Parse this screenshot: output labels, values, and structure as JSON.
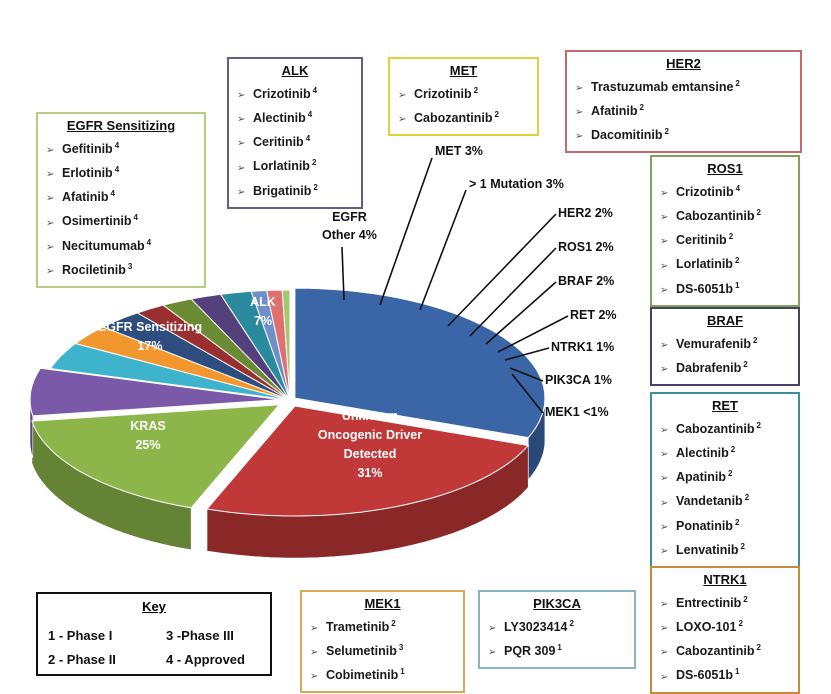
{
  "chart_data": {
    "type": "pie",
    "title": "",
    "slices": [
      {
        "label": "Unknown Oncogenic Driver Detected",
        "lines": [
          "Unknown",
          "Oncogenic Driver",
          "Detected",
          "31%"
        ],
        "value": 31,
        "value_label": "31%",
        "color": "#3a66a8"
      },
      {
        "label": "KRAS",
        "lines": [
          "KRAS",
          "25%"
        ],
        "value": 25,
        "value_label": "25%",
        "color": "#c03838"
      },
      {
        "label": "EGFR Sensitizing",
        "lines": [
          "EGFR Sensitizing",
          "17%"
        ],
        "value": 17,
        "value_label": "17%",
        "color": "#8cb64a"
      },
      {
        "label": "ALK",
        "lines": [
          "ALK",
          "7%"
        ],
        "value": 7,
        "value_label": "7%",
        "color": "#7a5aa8"
      },
      {
        "label": "EGFR Other",
        "value": 4,
        "value_label": "4%",
        "color": "#3eb3cc"
      },
      {
        "label": "MET",
        "value": 3,
        "value_label": "3%",
        "color": "#f2962e"
      },
      {
        "label": "> 1 Mutation",
        "value": 3,
        "value_label": "3%",
        "color": "#2c4d7e"
      },
      {
        "label": "HER2",
        "value": 2,
        "value_label": "2%",
        "color": "#9a2f2f"
      },
      {
        "label": "ROS1",
        "value": 2,
        "value_label": "2%",
        "color": "#6a8a34"
      },
      {
        "label": "BRAF",
        "value": 2,
        "value_label": "2%",
        "color": "#54407a"
      },
      {
        "label": "RET",
        "value": 2,
        "value_label": "2%",
        "color": "#2b8a9e"
      },
      {
        "label": "NTRK1",
        "value": 1,
        "value_label": "1%",
        "color": "#6e8fc8"
      },
      {
        "label": "PIK3CA",
        "value": 1,
        "value_label": "1%",
        "color": "#e07070"
      },
      {
        "label": "MEK1",
        "value": 0.5,
        "value_label": "<1%",
        "color": "#a4c870"
      }
    ],
    "callouts": [
      {
        "label": "EGFR Other 4%",
        "lines": [
          "EGFR",
          "Other 4%"
        ]
      },
      {
        "label": "MET 3%"
      },
      {
        "label": "> 1 Mutation 3%"
      },
      {
        "label": "HER2 2%"
      },
      {
        "label": "ROS1 2%"
      },
      {
        "label": "BRAF 2%"
      },
      {
        "label": "RET 2%"
      },
      {
        "label": "NTRK1 1%"
      },
      {
        "label": "PIK3CA 1%"
      },
      {
        "label": "MEK1 <1%"
      }
    ]
  },
  "boxes": {
    "egfr": {
      "title": "EGFR Sensitizing",
      "border": "#b6cf84",
      "items": [
        {
          "drug": "Gefitinib",
          "phase": "4"
        },
        {
          "drug": "Erlotinib",
          "phase": "4"
        },
        {
          "drug": "Afatinib",
          "phase": "4"
        },
        {
          "drug": "Osimertinib",
          "phase": "4"
        },
        {
          "drug": "Necitumumab",
          "phase": "4"
        },
        {
          "drug": "Rociletinib",
          "phase": "3"
        }
      ]
    },
    "alk": {
      "title": "ALK",
      "border": "#6a5a86",
      "items": [
        {
          "drug": "Crizotinib",
          "phase": "4"
        },
        {
          "drug": "Alectinib",
          "phase": "4"
        },
        {
          "drug": "Ceritinib",
          "phase": "4"
        },
        {
          "drug": "Lorlatinib",
          "phase": "2"
        },
        {
          "drug": "Brigatinib",
          "phase": "2"
        }
      ]
    },
    "met": {
      "title": "MET",
      "border": "#e2d23a",
      "items": [
        {
          "drug": "Crizotinib",
          "phase": "2"
        },
        {
          "drug": "Cabozantinib",
          "phase": "2"
        }
      ]
    },
    "her2": {
      "title": "HER2",
      "border": "#c46a6a",
      "items": [
        {
          "drug": "Trastuzumab emtansine",
          "phase": "2"
        },
        {
          "drug": "Afatinib",
          "phase": "2"
        },
        {
          "drug": "Dacomitinib",
          "phase": "2"
        }
      ]
    },
    "ros1": {
      "title": "ROS1",
      "border": "#7fa35a",
      "items": [
        {
          "drug": "Crizotinib",
          "phase": "4"
        },
        {
          "drug": "Cabozantinib",
          "phase": "2"
        },
        {
          "drug": "Ceritinib",
          "phase": "2"
        },
        {
          "drug": "Lorlatinib",
          "phase": "2"
        },
        {
          "drug": "DS-6051b",
          "phase": "1"
        }
      ]
    },
    "braf": {
      "title": "BRAF",
      "border": "#4a4266",
      "items": [
        {
          "drug": "Vemurafenib",
          "phase": "2"
        },
        {
          "drug": "Dabrafenib",
          "phase": "2"
        }
      ]
    },
    "ret": {
      "title": "RET",
      "border": "#3e8e9a",
      "items": [
        {
          "drug": "Cabozantinib",
          "phase": "2"
        },
        {
          "drug": "Alectinib",
          "phase": "2"
        },
        {
          "drug": "Apatinib",
          "phase": "2"
        },
        {
          "drug": "Vandetanib",
          "phase": "2"
        },
        {
          "drug": "Ponatinib",
          "phase": "2"
        },
        {
          "drug": "Lenvatinib",
          "phase": "2"
        }
      ]
    },
    "ntrk1": {
      "title": "NTRK1",
      "border": "#c9883a",
      "items": [
        {
          "drug": "Entrectinib",
          "phase": "2"
        },
        {
          "drug": "LOXO-101",
          "phase": "2"
        },
        {
          "drug": "Cabozantinib",
          "phase": "2"
        },
        {
          "drug": "DS-6051b",
          "phase": "1"
        }
      ]
    },
    "mek1": {
      "title": "MEK1",
      "border": "#d8a85a",
      "items": [
        {
          "drug": "Trametinib",
          "phase": "2"
        },
        {
          "drug": "Selumetinib",
          "phase": "3"
        },
        {
          "drug": "Cobimetinib",
          "phase": "1"
        }
      ]
    },
    "pik3ca": {
      "title": "PIK3CA",
      "border": "#8ab2c4",
      "items": [
        {
          "drug": "LY3023414",
          "phase": "2"
        },
        {
          "drug": "PQR 309",
          "phase": "1"
        }
      ]
    }
  },
  "key": {
    "title": "Key",
    "phase1": "1 - Phase I",
    "phase2": "2 - Phase II",
    "phase3": "3 -Phase III",
    "phase4": "4 - Approved"
  }
}
